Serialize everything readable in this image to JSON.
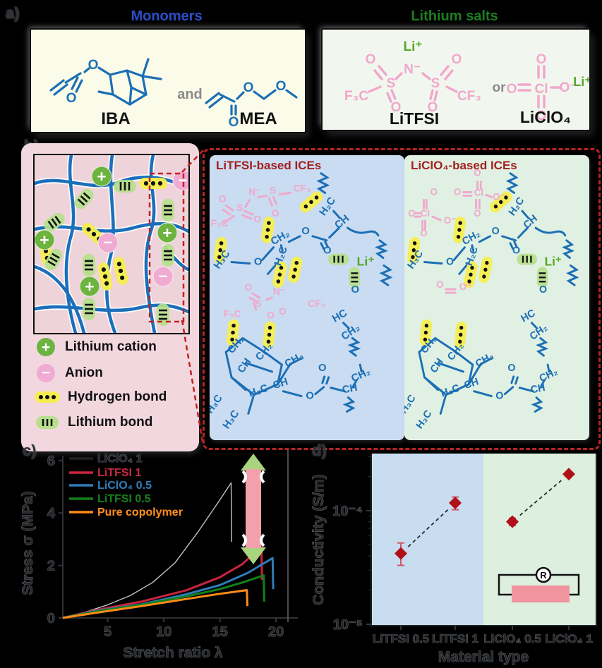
{
  "figure": {
    "background": "#000000"
  },
  "panel_a": {
    "label": "a)",
    "monomers": {
      "title": "Monomers",
      "title_color": "#2b4ec6",
      "and": "and",
      "iba": "IBA",
      "mea": "MEA",
      "o": "O"
    },
    "salts": {
      "title": "Lithium salts",
      "title_color": "#1d7c1d",
      "or": "or",
      "litfsi_label": "LiTFSI",
      "liclo4_label": "LiClO₄",
      "li": "Li⁺",
      "n": "N⁻",
      "s": "S",
      "f3c": "F₃C",
      "cf3": "CF₃",
      "o": "O",
      "cl": "Cl",
      "o_minus": "O⁻"
    }
  },
  "panel_b": {
    "label": "b)",
    "plus": "+",
    "minus": "−",
    "legend": [
      {
        "icon": "lithium-cation-icon",
        "label": "Lithium cation"
      },
      {
        "icon": "anion-icon",
        "label": "Anion"
      },
      {
        "icon": "hydrogen-bond-icon",
        "label": "Hydrogen bond"
      },
      {
        "icon": "lithium-bond-icon",
        "label": "Lithium bond"
      }
    ]
  },
  "ices": {
    "chain_labels": [
      "H₂C",
      "CH",
      "O",
      "O",
      "CH₂",
      "H₂C",
      "H₃C",
      "O",
      "CH₂",
      "CH₂",
      "CH",
      "CH₃",
      "H₂C–CH",
      "H₃C",
      "H₃C",
      "O",
      "O",
      "CH",
      "CH₂",
      "HC",
      "CH₂",
      "O"
    ],
    "li": "Li⁺",
    "litfsi": {
      "title": "LiTFSI-based ICEs",
      "anion_labels": [
        "O",
        "S",
        "N⁻",
        "S",
        "CF₃",
        "F₃C",
        "O",
        "O",
        "O",
        "N⁻",
        "S",
        "F₃C",
        "CF₃",
        "O",
        "O"
      ]
    },
    "liclo4": {
      "title": "LiClO₄-based ICEs",
      "anion_labels": [
        "O",
        "Cl",
        "O",
        "O⁻",
        "O",
        "O",
        "Cl",
        "O⁻",
        "O",
        "O",
        "O",
        "O⁻"
      ]
    }
  },
  "chart_data": [
    {
      "type": "line",
      "xlabel": "Stretch ratio λ",
      "ylabel": "Stress σ (MPa)",
      "xlim": [
        1,
        21
      ],
      "ylim": [
        0,
        6
      ],
      "xticks": [
        5,
        10,
        15,
        20
      ],
      "yticks": [
        0,
        2,
        4,
        6
      ],
      "grid": false,
      "legend_position": "upper-left",
      "series": [
        {
          "name": "LiClO₄ 1",
          "color": "#1a1a1a",
          "render_color": "#bfc3c6",
          "width": 1.4,
          "ghost": true,
          "points": [
            [
              1,
              0
            ],
            [
              3,
              0.22
            ],
            [
              5,
              0.5
            ],
            [
              7,
              0.85
            ],
            [
              9,
              1.35
            ],
            [
              11,
              2.1
            ],
            [
              13,
              3.25
            ],
            [
              15,
              4.5
            ],
            [
              16,
              5.15
            ],
            [
              16.05,
              2.9
            ]
          ]
        },
        {
          "name": "LiTFSI 1",
          "color": "#c9243f",
          "width": 3,
          "points": [
            [
              1,
              0
            ],
            [
              4,
              0.3
            ],
            [
              8,
              0.62
            ],
            [
              12,
              1.05
            ],
            [
              15,
              1.55
            ],
            [
              17,
              2.05
            ],
            [
              18.7,
              2.72
            ],
            [
              18.75,
              1.45
            ]
          ]
        },
        {
          "name": "LiClO₄ 0.5",
          "color": "#2e7cb8",
          "width": 3,
          "points": [
            [
              1,
              0
            ],
            [
              4,
              0.27
            ],
            [
              8,
              0.52
            ],
            [
              12,
              0.9
            ],
            [
              15,
              1.25
            ],
            [
              17.5,
              1.72
            ],
            [
              19.7,
              2.28
            ],
            [
              19.75,
              1.1
            ]
          ]
        },
        {
          "name": "LiTFSI 0.5",
          "color": "#12801a",
          "width": 3,
          "points": [
            [
              1,
              0
            ],
            [
              4,
              0.25
            ],
            [
              8,
              0.5
            ],
            [
              12,
              0.82
            ],
            [
              15,
              1.1
            ],
            [
              17,
              1.35
            ],
            [
              18.9,
              1.62
            ],
            [
              18.95,
              0.62
            ]
          ]
        },
        {
          "name": "Pure copolymer",
          "color": "#ff8c19",
          "width": 3,
          "points": [
            [
              1,
              0
            ],
            [
              4,
              0.2
            ],
            [
              8,
              0.45
            ],
            [
              12,
              0.72
            ],
            [
              15,
              0.92
            ],
            [
              17.4,
              1.06
            ],
            [
              17.45,
              0.45
            ]
          ]
        }
      ],
      "annotations": {
        "stretch_arrow": true,
        "fracture_line_x": 21
      }
    },
    {
      "type": "scatter",
      "xlabel": "Material type",
      "ylabel": "Conductivity (S/m)",
      "yscale": "log",
      "ylim": [
        1e-05,
        0.00032
      ],
      "ytick_labels": [
        "10⁻⁴",
        "10⁻⁵"
      ],
      "ytick_values": [
        0.0001,
        1e-05
      ],
      "categories": [
        "LiTFSI 0.5",
        "LiTFSI 1",
        "LiClO₄ 0.5",
        "LiClO₄ 1"
      ],
      "values": [
        4.2e-05,
        0.000117,
        8e-05,
        0.00021
      ],
      "errors_plus": [
        1e-05,
        1.5e-05,
        6e-06,
        1e-05
      ],
      "errors_minus": [
        9e-06,
        1.5e-05,
        6e-06,
        1e-05
      ],
      "marker": {
        "shape": "diamond",
        "color": "#b01118",
        "error_color": "#cf5a66"
      },
      "trend_pairs": [
        [
          0,
          1
        ],
        [
          2,
          3
        ]
      ],
      "groups": [
        {
          "name": "LiTFSI",
          "bg": "#c9ddf1",
          "indices": [
            0,
            1
          ]
        },
        {
          "name": "LiClO₄",
          "bg": "#ddefdf",
          "indices": [
            2,
            3
          ]
        }
      ],
      "inset": {
        "kind": "resistance-circuit",
        "label": "R",
        "sample_color": "#f0949f"
      }
    }
  ]
}
